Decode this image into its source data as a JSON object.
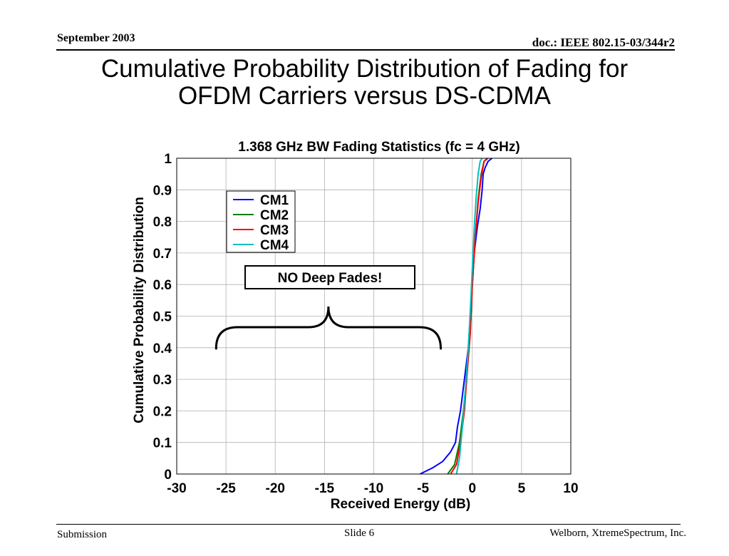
{
  "header": {
    "date": "September 2003",
    "doc_id": "doc.: IEEE 802.15-03/344r2"
  },
  "slide_title": {
    "line1": "Cumulative Probability Distribution of Fading for",
    "line2": "OFDM Carriers versus DS-CDMA"
  },
  "footer": {
    "left": "Submission",
    "center": "Slide 6",
    "right": "Welborn, XtremeSpectrum, Inc."
  },
  "annotation": {
    "text": "NO Deep Fades!",
    "brace_from_x": -26,
    "brace_to_x": -3.2
  },
  "chart_data": {
    "type": "line",
    "title": "1.368 GHz BW Fading Statistics (fc = 4 GHz)",
    "xlabel": "Received Energy (dB)",
    "ylabel": "Cumulative Probability Distribution",
    "xlim": [
      -30,
      10
    ],
    "ylim": [
      0,
      1
    ],
    "xticks": [
      -30,
      -25,
      -20,
      -15,
      -10,
      -5,
      0,
      5,
      10
    ],
    "yticks": [
      0,
      0.1,
      0.2,
      0.3,
      0.4,
      0.5,
      0.6,
      0.7,
      0.8,
      0.9,
      1
    ],
    "ytick_labels": [
      "0",
      "0.1",
      "0.2",
      "0.3",
      "0.4",
      "0.5",
      "0.6",
      "0.7",
      "0.8",
      "0.9",
      "1"
    ],
    "grid": true,
    "legend_position": "upper-left",
    "series": [
      {
        "name": "CM1",
        "color": "#0000ff",
        "x": [
          -5.3,
          -4.0,
          -3.0,
          -2.2,
          -1.7,
          -1.5,
          -1.2,
          -0.8,
          -0.4,
          -0.2,
          0.0,
          0.2,
          0.5,
          0.8,
          1.0,
          1.1,
          1.3,
          1.6,
          2.0
        ],
        "y": [
          0.0,
          0.02,
          0.04,
          0.07,
          0.1,
          0.15,
          0.2,
          0.3,
          0.4,
          0.5,
          0.6,
          0.7,
          0.78,
          0.84,
          0.9,
          0.95,
          0.97,
          0.99,
          1.0
        ]
      },
      {
        "name": "CM2",
        "color": "#008000",
        "x": [
          -2.5,
          -1.8,
          -1.3,
          -0.9,
          -0.5,
          -0.2,
          0.0,
          0.3,
          0.6,
          0.9,
          1.2,
          1.5
        ],
        "y": [
          0.0,
          0.03,
          0.1,
          0.2,
          0.33,
          0.45,
          0.6,
          0.75,
          0.87,
          0.95,
          0.99,
          1.0
        ]
      },
      {
        "name": "CM3",
        "color": "#ff0000",
        "x": [
          -2.2,
          -1.6,
          -1.2,
          -0.8,
          -0.5,
          -0.2,
          0.0,
          0.3,
          0.6,
          0.9,
          1.2,
          1.6
        ],
        "y": [
          0.0,
          0.03,
          0.1,
          0.2,
          0.33,
          0.45,
          0.6,
          0.75,
          0.86,
          0.94,
          0.99,
          1.0
        ]
      },
      {
        "name": "CM4",
        "color": "#00bfbf",
        "x": [
          -1.6,
          -1.3,
          -1.0,
          -0.7,
          -0.4,
          -0.2,
          0.0,
          0.2,
          0.4,
          0.6,
          0.8,
          1.0
        ],
        "y": [
          0.0,
          0.05,
          0.15,
          0.27,
          0.4,
          0.52,
          0.65,
          0.78,
          0.88,
          0.95,
          0.99,
          1.0
        ]
      }
    ]
  }
}
